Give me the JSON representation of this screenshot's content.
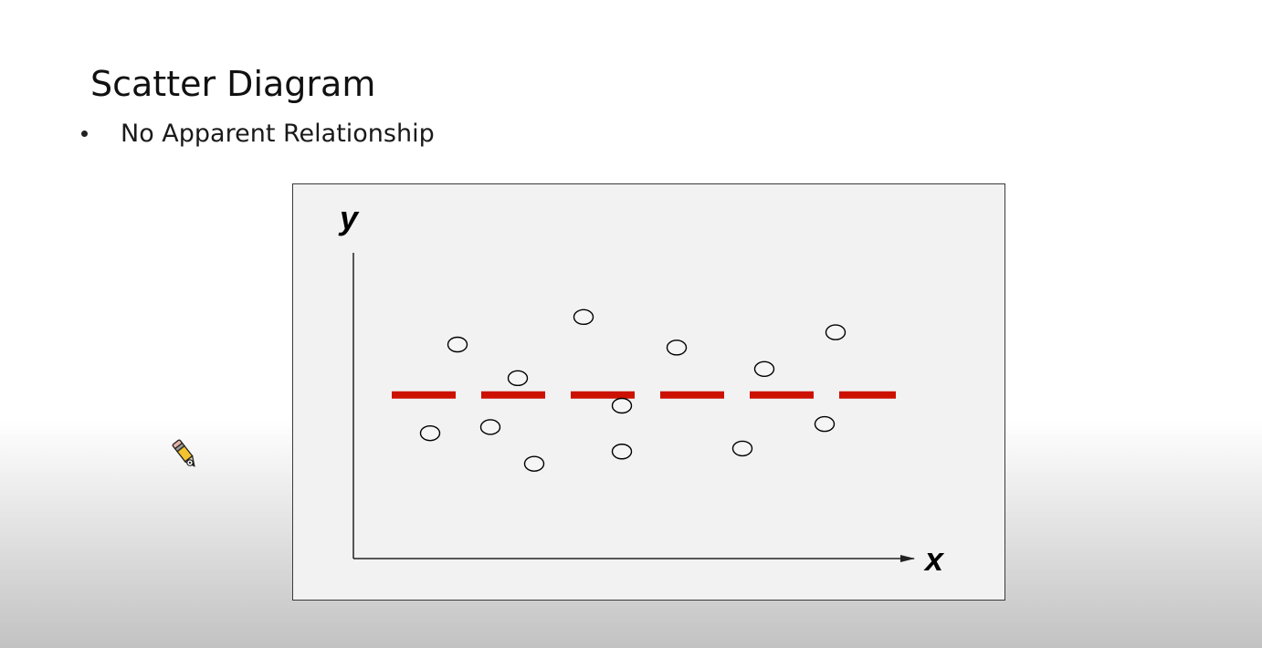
{
  "slide": {
    "title": "Scatter Diagram",
    "bullet": "No Apparent Relationship"
  },
  "cursor": {
    "icon": "pencil-icon"
  },
  "chart_data": {
    "type": "scatter",
    "xlabel": "x",
    "ylabel": "y",
    "xlim": [
      0,
      10
    ],
    "ylim": [
      0,
      10
    ],
    "grid": false,
    "ticks": false,
    "marker": "open-circle",
    "points": [
      {
        "x": 1.4,
        "y": 4.1
      },
      {
        "x": 1.9,
        "y": 7.0
      },
      {
        "x": 2.5,
        "y": 4.3
      },
      {
        "x": 3.0,
        "y": 5.9
      },
      {
        "x": 3.3,
        "y": 3.1
      },
      {
        "x": 4.2,
        "y": 7.9
      },
      {
        "x": 4.9,
        "y": 5.0
      },
      {
        "x": 4.9,
        "y": 3.5
      },
      {
        "x": 5.9,
        "y": 6.9
      },
      {
        "x": 7.1,
        "y": 3.6
      },
      {
        "x": 7.5,
        "y": 6.2
      },
      {
        "x": 8.6,
        "y": 4.4
      },
      {
        "x": 8.8,
        "y": 7.4
      }
    ],
    "reference_line": {
      "style": "dashed",
      "y": 5.35,
      "x_start": 0.7,
      "x_end": 9.9
    },
    "colors": {
      "reference_line": "#cc1100",
      "marker_stroke": "#000000",
      "marker_fill": "#f5f5f5",
      "panel": "#f2f2f2"
    }
  }
}
